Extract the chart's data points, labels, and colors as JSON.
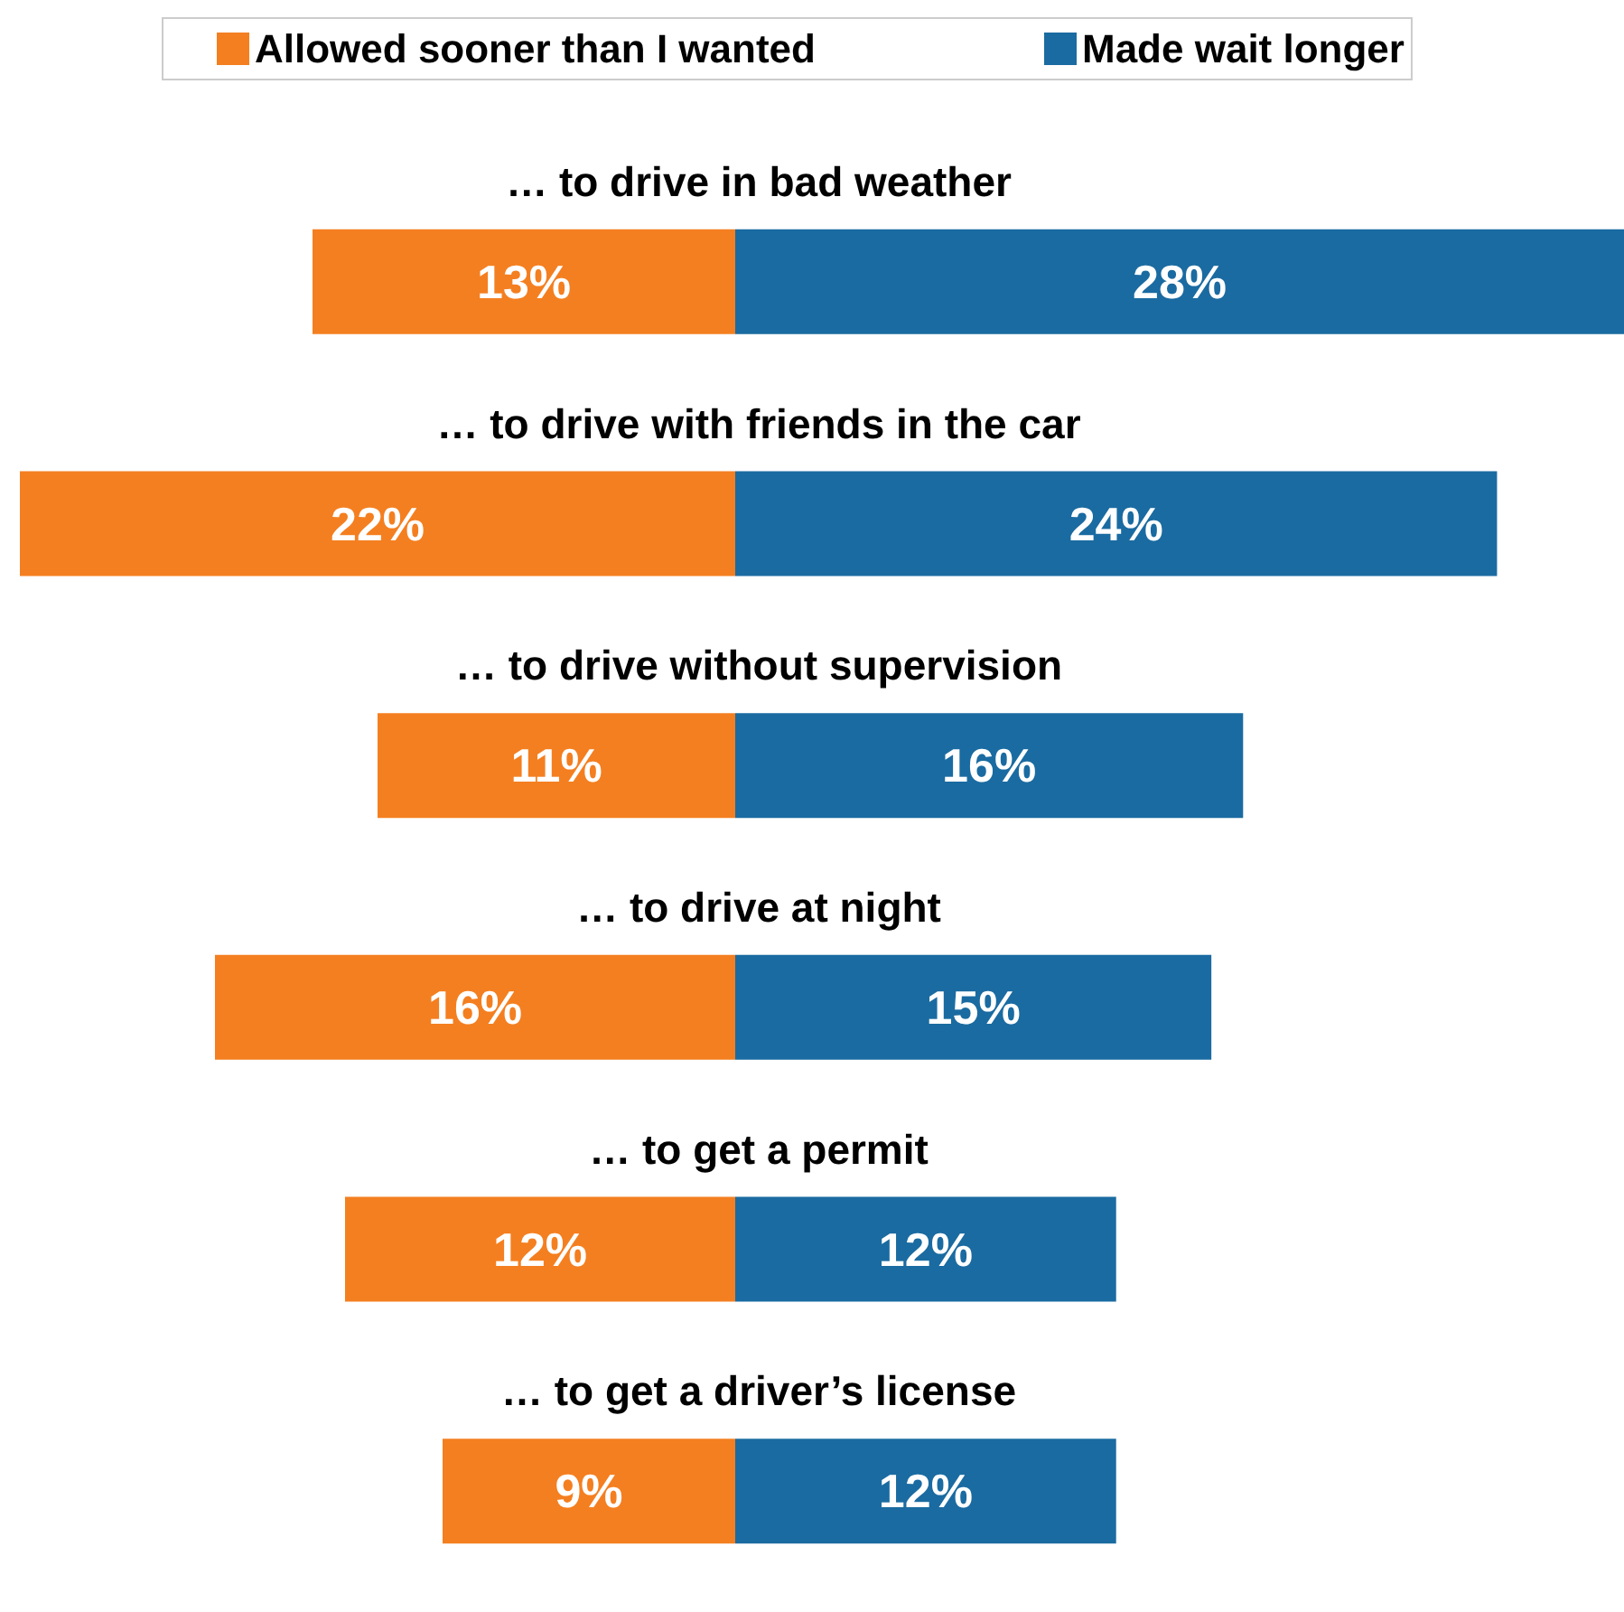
{
  "chart_data": [
    {
      "type": "bar",
      "orientation": "horizontal",
      "categories": [
        "… to drive in bad weather",
        "… to drive with friends in the car",
        "… to drive without supervision",
        "… to drive at night",
        "… to get a permit",
        "… to get a driver’s license"
      ],
      "series": [
        {
          "name": "Allowed sooner than I wanted",
          "color": "#f47f20",
          "values": [
            13,
            22,
            11,
            16,
            12,
            9
          ],
          "value_labels": [
            "13%",
            "22%",
            "11%",
            "16%",
            "12%",
            "9%"
          ]
        }
      ],
      "xlim": [
        22,
        0
      ],
      "tick_labels": false,
      "legend": "top"
    },
    {
      "type": "bar",
      "orientation": "horizontal",
      "categories": [
        null,
        null,
        null,
        null,
        null,
        null
      ],
      "series": [
        {
          "name": "Made wait longer",
          "color": "#1a6ba1",
          "values": [
            28,
            24,
            16,
            15,
            12,
            12
          ],
          "value_labels": [
            "28%",
            "24%",
            "16%",
            "15%",
            "12%",
            "12%"
          ]
        }
      ],
      "xlim": [
        0,
        28
      ],
      "tick_labels": false,
      "legend": "top"
    }
  ]
}
